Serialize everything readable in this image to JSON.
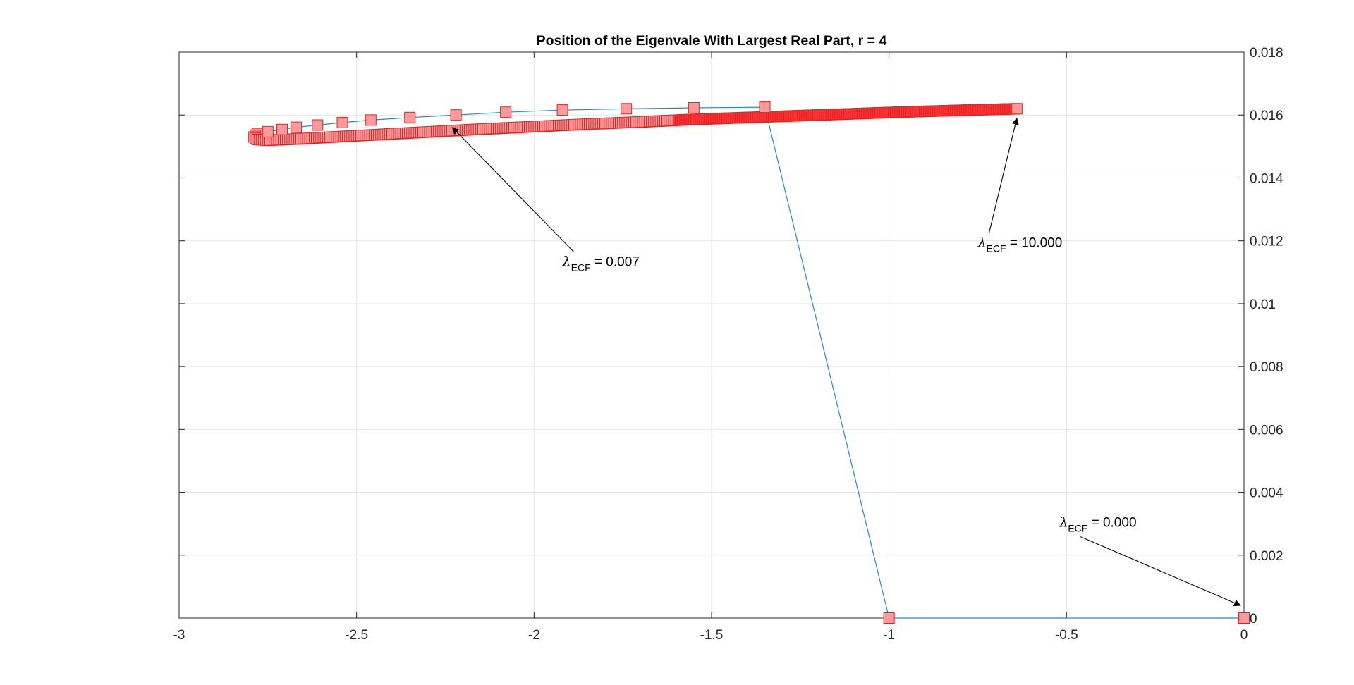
{
  "chart_data": {
    "type": "scatter",
    "title": "Position of the Eigenvale With Largest Real Part,  r = 4",
    "xlabel": "",
    "ylabel": "",
    "xlim": [
      -3,
      0
    ],
    "ylim": [
      0,
      0.018
    ],
    "x_ticks": [
      -3,
      -2.5,
      -2,
      -1.5,
      -1,
      -0.5,
      0
    ],
    "y_ticks": [
      0.002,
      0.004,
      0.006,
      0.008,
      0.01,
      0.012,
      0.014,
      0.016,
      0.018,
      0
    ],
    "x_tick_labels": [
      "-3",
      "-2.5",
      "-2",
      "-1.5",
      "-1",
      "-0.5",
      "0"
    ],
    "y_tick_labels": [
      "0.002",
      "0.004",
      "0.006",
      "0.008",
      "0.01",
      "0.012",
      "0.014",
      "0.016",
      "0.018",
      "0"
    ],
    "y_axis_location": "right",
    "grid": true,
    "colors": {
      "line": "#2e86c1",
      "marker_fill": "#ff9a9a",
      "marker_edge": "#d62728",
      "dense_fill": "#ff3030",
      "grid": "#e6e6e6",
      "axis": "#262626"
    },
    "series": [
      {
        "x": [
          0,
          -1,
          -1.35,
          -1.55,
          -1.74,
          -1.92,
          -2.08,
          -2.22,
          -2.35,
          -2.46,
          -2.54,
          -2.61,
          -2.67,
          -2.71,
          -2.75,
          -2.78,
          -2.79,
          -2.78,
          -2.75,
          -2.7,
          -2.6,
          -2.45,
          -2.3,
          -2.15,
          -2.0,
          -1.85,
          -1.7,
          -1.55,
          -1.4,
          -1.25,
          -1.1,
          -0.95,
          -0.8,
          -0.64
        ],
        "y": [
          0,
          0,
          0.01625,
          0.01623,
          0.0162,
          0.01616,
          0.01609,
          0.016,
          0.01592,
          0.01584,
          0.01576,
          0.01568,
          0.01561,
          0.01554,
          0.01547,
          0.01541,
          0.0153,
          0.01522,
          0.0152,
          0.01522,
          0.01528,
          0.01537,
          0.01546,
          0.01555,
          0.01563,
          0.01571,
          0.01578,
          0.01586,
          0.01592,
          0.01598,
          0.01604,
          0.0161,
          0.01615,
          0.0162
        ]
      }
    ],
    "annotations": [
      {
        "text": " = 0.007",
        "symbol": "λ",
        "subscript": "ECF",
        "target": [
          -2.23,
          0.0156
        ],
        "label_at": [
          -1.92,
          0.0112
        ]
      },
      {
        "text": " = 10.000",
        "symbol": "λ",
        "subscript": "ECF",
        "target": [
          -0.64,
          0.0159
        ],
        "label_at": [
          -0.75,
          0.0118
        ]
      },
      {
        "text": " = 0.000",
        "symbol": "λ",
        "subscript": "ECF",
        "target": [
          -0.01,
          0.0004
        ],
        "label_at": [
          -0.52,
          0.0029
        ]
      }
    ]
  }
}
